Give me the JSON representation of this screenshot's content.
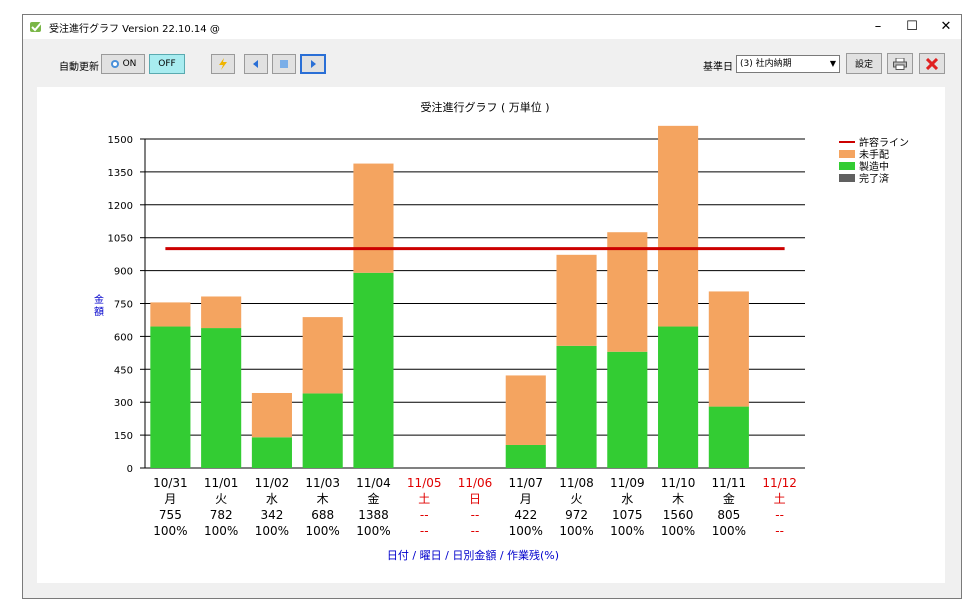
{
  "window": {
    "title": "受注進行グラフ Version 22.10.14 @",
    "minimize": "–",
    "maximize": "☐",
    "close": "✕"
  },
  "toolbar": {
    "auto_update_label": "自動更新",
    "on_label": "ON",
    "off_label": "OFF",
    "base_date_label": "基準日",
    "base_date_value": "(3) 社内納期",
    "settings_label": "設定"
  },
  "icons": [
    "app-icon",
    "refresh-icon",
    "lightning-icon",
    "prev-icon",
    "stop-icon",
    "next-icon",
    "printer-icon",
    "close-red-icon",
    "legend-line-icon"
  ],
  "colors": {
    "completed": "#606060",
    "in_production": "#33cc33",
    "not_arranged": "#f4a460",
    "allowed_line": "#cc0000",
    "holiday_text": "#e00000",
    "axis_label": "#0000cc"
  },
  "chart_data": {
    "type": "bar",
    "stacked": true,
    "title": "受注進行グラフ ( 万単位 )",
    "xlabel": "日付 / 曜日 / 日別金額 / 作業残(%)",
    "ylabel": "金額",
    "ylim": [
      0,
      1500
    ],
    "yticks": [
      0,
      150,
      300,
      450,
      600,
      750,
      900,
      1050,
      1200,
      1350,
      1500
    ],
    "grid": true,
    "legend_position": "top-right",
    "categories": [
      "10/31",
      "11/01",
      "11/02",
      "11/03",
      "11/04",
      "11/05",
      "11/06",
      "11/07",
      "11/08",
      "11/09",
      "11/10",
      "11/11",
      "11/12"
    ],
    "weekdays": [
      "月",
      "火",
      "水",
      "木",
      "金",
      "土",
      "日",
      "月",
      "火",
      "水",
      "木",
      "金",
      "土"
    ],
    "holidays": [
      false,
      false,
      false,
      false,
      false,
      true,
      true,
      false,
      false,
      false,
      false,
      false,
      true
    ],
    "totals_text": [
      "755",
      "782",
      "342",
      "688",
      "1388",
      "--",
      "--",
      "422",
      "972",
      "1075",
      "1560",
      "805",
      "--"
    ],
    "remaining_text": [
      "100%",
      "100%",
      "100%",
      "100%",
      "100%",
      "--",
      "--",
      "100%",
      "100%",
      "100%",
      "100%",
      "100%",
      "--"
    ],
    "series": [
      {
        "name": "完了済",
        "values": [
          0,
          0,
          0,
          0,
          0,
          0,
          0,
          0,
          0,
          0,
          0,
          0,
          0
        ]
      },
      {
        "name": "製造中",
        "values": [
          645,
          638,
          140,
          340,
          890,
          0,
          0,
          105,
          557,
          530,
          645,
          280,
          0
        ]
      },
      {
        "name": "未手配",
        "values": [
          110,
          144,
          202,
          348,
          498,
          0,
          0,
          317,
          415,
          545,
          915,
          525,
          0
        ]
      }
    ],
    "reference_line": {
      "name": "許容ライン",
      "value": 1000
    },
    "legend": [
      "許容ライン",
      "未手配",
      "製造中",
      "完了済"
    ]
  }
}
